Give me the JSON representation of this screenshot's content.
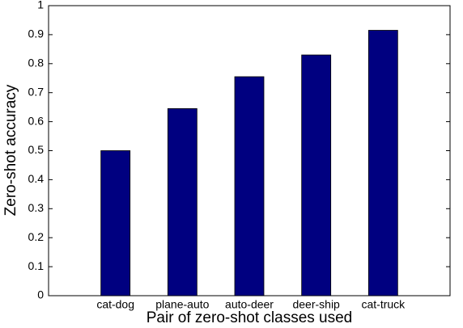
{
  "chart_data": {
    "type": "bar",
    "xlabel": "Pair of zero-shot classes used",
    "ylabel": "Zero-shot accuracy",
    "categories": [
      "cat-dog",
      "plane-auto",
      "auto-deer",
      "deer-ship",
      "cat-truck"
    ],
    "values": [
      0.5,
      0.645,
      0.755,
      0.83,
      0.915
    ],
    "color": "#000080",
    "ylim": [
      0,
      1
    ],
    "yticks": [
      0,
      0.1,
      0.2,
      0.3,
      0.4,
      0.5,
      0.6,
      0.7,
      0.8,
      0.9,
      1
    ],
    "grid": false
  }
}
